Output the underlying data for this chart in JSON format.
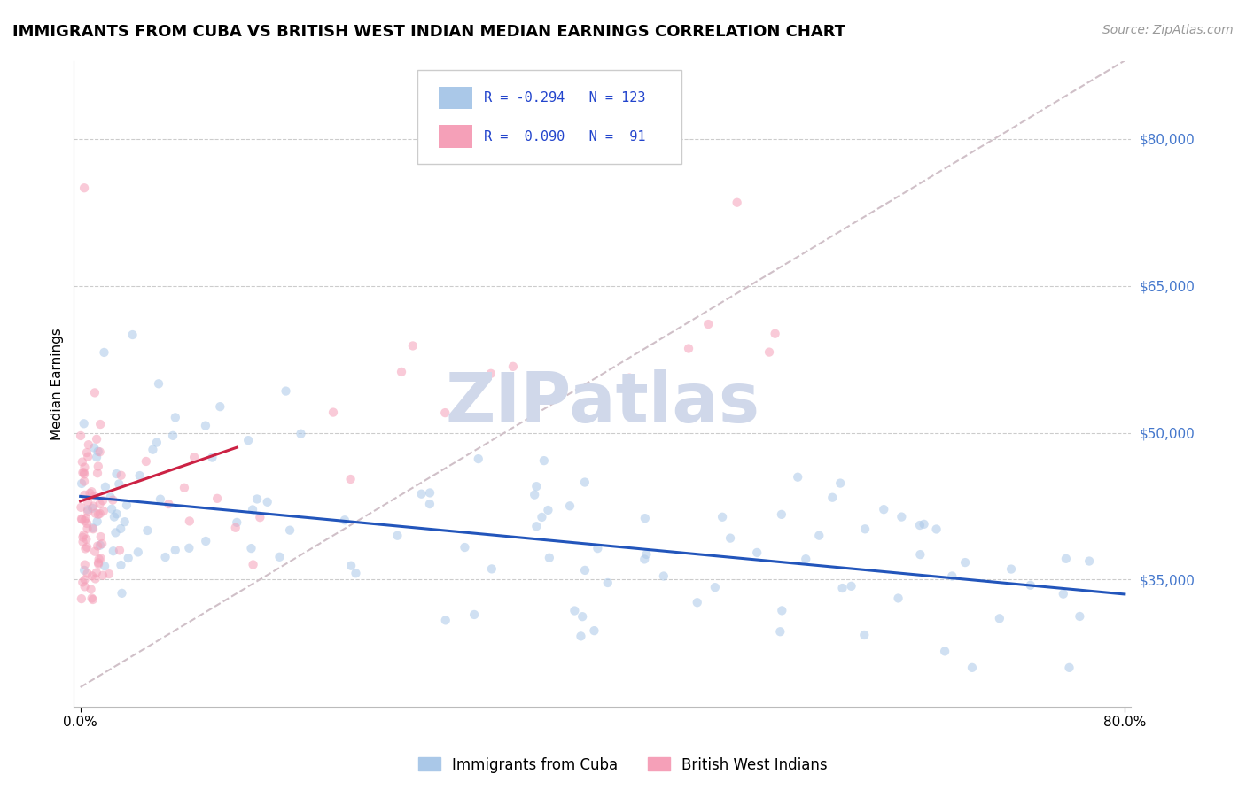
{
  "title": "IMMIGRANTS FROM CUBA VS BRITISH WEST INDIAN MEDIAN EARNINGS CORRELATION CHART",
  "source_text": "Source: ZipAtlas.com",
  "ylabel": "Median Earnings",
  "xlim": [
    -0.005,
    0.805
  ],
  "ylim": [
    22000,
    88000
  ],
  "ytick_values": [
    35000,
    50000,
    65000,
    80000
  ],
  "ytick_labels": [
    "$35,000",
    "$50,000",
    "$65,000",
    "$80,000"
  ],
  "cuba_R": -0.294,
  "cuba_N": 123,
  "bwi_R": 0.09,
  "bwi_N": 91,
  "cuba_color": "#aac8e8",
  "bwi_color": "#f5a0b8",
  "cuba_line_color": "#2255bb",
  "bwi_line_color": "#cc2244",
  "scatter_alpha": 0.55,
  "scatter_size": 55,
  "background_color": "#ffffff",
  "grid_color": "#cccccc",
  "watermark_text": "ZIPatlas",
  "watermark_color": "#d0d8ea",
  "legend_R_color": "#2244cc",
  "title_fontsize": 13,
  "ytick_fontsize": 11,
  "ytick_color": "#4477cc",
  "diag_line_color": "#d0c0c8",
  "diag_line_style": "--",
  "cuba_line_y0": 43500,
  "cuba_line_y1": 33500,
  "bwi_line_x0": 0.0,
  "bwi_line_x1": 0.12,
  "bwi_line_y0": 43000,
  "bwi_line_y1": 48500
}
